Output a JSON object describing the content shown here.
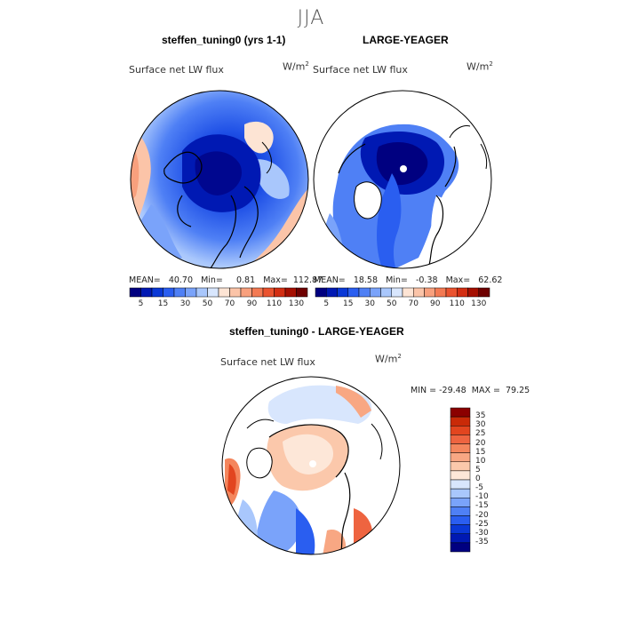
{
  "figure": {
    "season": "JJA"
  },
  "panels": [
    {
      "title": "steffen_tuning0 (yrs 1-1)",
      "variable": "Surface net LW flux",
      "units": "W/m",
      "units_exp": "2",
      "stats": "MEAN=   40.70   Min=     0.81   Max=  112.87"
    },
    {
      "title": "LARGE-YEAGER",
      "variable": "Surface net LW flux",
      "units": "W/m",
      "units_exp": "2",
      "stats": "MEAN=   18.58   Min=   -0.38   Max=   62.62"
    },
    {
      "title": "steffen_tuning0 - LARGE-YEAGER",
      "variable": "Surface net LW flux",
      "units": "W/m",
      "units_exp": "2",
      "stats": "MIN = -29.48  MAX =  79.25"
    }
  ],
  "colorbar_abs": {
    "colors": [
      "#000080",
      "#0019b3",
      "#0a38d6",
      "#2a5ef0",
      "#4f80f5",
      "#7aa3fa",
      "#a9c7fc",
      "#d8e6fd",
      "#fde4d4",
      "#fbc4a8",
      "#f8a07d",
      "#f37a53",
      "#ea532f",
      "#d32e12",
      "#a50f00",
      "#6e0000"
    ],
    "labels": [
      "5",
      "15",
      "30",
      "50",
      "70",
      "90",
      "110",
      "130"
    ]
  },
  "colorbar_diff": {
    "colors": [
      "#000080",
      "#0019b3",
      "#0a38d6",
      "#2a5ef0",
      "#4f80f5",
      "#7aa3fa",
      "#a9c7fc",
      "#d8e6fd",
      "#fde7d8",
      "#fbc8ab",
      "#f8a783",
      "#f4865d",
      "#ee6440",
      "#e2451f",
      "#c92a08",
      "#8b0000"
    ],
    "labels": [
      "35",
      "30",
      "25",
      "20",
      "15",
      "10",
      "5",
      "0",
      "-5",
      "-10",
      "-15",
      "-20",
      "-25",
      "-30",
      "-35"
    ]
  }
}
